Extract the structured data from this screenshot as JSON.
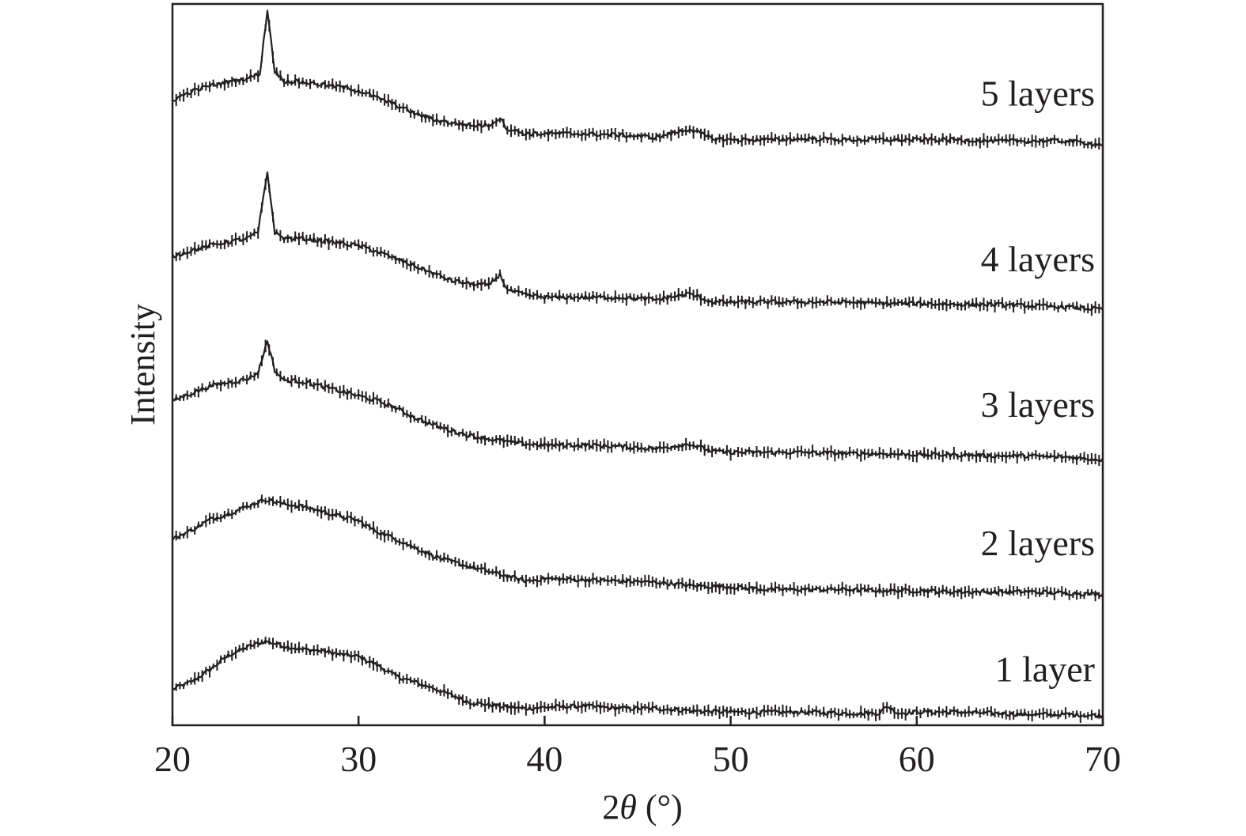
{
  "chart_data": {
    "type": "line",
    "title": "",
    "xlabel_prefix": "2",
    "xlabel_symbol": "θ",
    "xlabel_unit": " (°)",
    "ylabel": "Intensity",
    "xlim": [
      20,
      70
    ],
    "ylim": [
      0,
      6
    ],
    "xticks": [
      "20",
      "30",
      "40",
      "50",
      "60",
      "70"
    ],
    "y_tick_labels": false,
    "grid": false,
    "legend": "none (inline series labels at right)",
    "series": [
      {
        "name": "1 layer",
        "points": [
          [
            20,
            0.3
          ],
          [
            21,
            0.36
          ],
          [
            22,
            0.46
          ],
          [
            23,
            0.58
          ],
          [
            24,
            0.65
          ],
          [
            25,
            0.7
          ],
          [
            26,
            0.66
          ],
          [
            27,
            0.63
          ],
          [
            28,
            0.62
          ],
          [
            29,
            0.59
          ],
          [
            30,
            0.57
          ],
          [
            31,
            0.5
          ],
          [
            32,
            0.41
          ],
          [
            33,
            0.36
          ],
          [
            34,
            0.31
          ],
          [
            35,
            0.25
          ],
          [
            36,
            0.19
          ],
          [
            37,
            0.17
          ],
          [
            38,
            0.15
          ],
          [
            39,
            0.14
          ],
          [
            40,
            0.15
          ],
          [
            42,
            0.16
          ],
          [
            44,
            0.14
          ],
          [
            46,
            0.14
          ],
          [
            48,
            0.12
          ],
          [
            50,
            0.11
          ],
          [
            52,
            0.11
          ],
          [
            54,
            0.11
          ],
          [
            56,
            0.1
          ],
          [
            58,
            0.1
          ],
          [
            58.4,
            0.16
          ],
          [
            59,
            0.1
          ],
          [
            60,
            0.11
          ],
          [
            62,
            0.11
          ],
          [
            64,
            0.1
          ],
          [
            66,
            0.09
          ],
          [
            68,
            0.09
          ],
          [
            70,
            0.08
          ]
        ]
      },
      {
        "name": "2 layers",
        "points": [
          [
            20,
            1.55
          ],
          [
            21,
            1.62
          ],
          [
            22,
            1.71
          ],
          [
            23,
            1.76
          ],
          [
            24,
            1.82
          ],
          [
            25,
            1.88
          ],
          [
            26,
            1.84
          ],
          [
            27,
            1.82
          ],
          [
            28,
            1.78
          ],
          [
            29,
            1.74
          ],
          [
            30,
            1.7
          ],
          [
            31,
            1.61
          ],
          [
            32,
            1.55
          ],
          [
            33,
            1.48
          ],
          [
            34,
            1.41
          ],
          [
            35,
            1.36
          ],
          [
            36,
            1.32
          ],
          [
            37,
            1.28
          ],
          [
            38,
            1.24
          ],
          [
            39,
            1.2
          ],
          [
            40,
            1.22
          ],
          [
            42,
            1.21
          ],
          [
            44,
            1.2
          ],
          [
            46,
            1.19
          ],
          [
            48,
            1.16
          ],
          [
            50,
            1.15
          ],
          [
            52,
            1.13
          ],
          [
            54,
            1.13
          ],
          [
            56,
            1.13
          ],
          [
            58,
            1.12
          ],
          [
            60,
            1.12
          ],
          [
            62,
            1.11
          ],
          [
            64,
            1.11
          ],
          [
            66,
            1.11
          ],
          [
            68,
            1.1
          ],
          [
            70,
            1.09
          ]
        ]
      },
      {
        "name": "3 layers",
        "points": [
          [
            20,
            2.7
          ],
          [
            21,
            2.76
          ],
          [
            22,
            2.82
          ],
          [
            23,
            2.85
          ],
          [
            24,
            2.88
          ],
          [
            24.6,
            2.93
          ],
          [
            25.1,
            3.2
          ],
          [
            25.5,
            2.95
          ],
          [
            26,
            2.87
          ],
          [
            27,
            2.86
          ],
          [
            28,
            2.82
          ],
          [
            29,
            2.78
          ],
          [
            30,
            2.74
          ],
          [
            31,
            2.7
          ],
          [
            32,
            2.64
          ],
          [
            33,
            2.56
          ],
          [
            34,
            2.5
          ],
          [
            35,
            2.45
          ],
          [
            36,
            2.41
          ],
          [
            37,
            2.38
          ],
          [
            38,
            2.36
          ],
          [
            39,
            2.34
          ],
          [
            40,
            2.33
          ],
          [
            42,
            2.33
          ],
          [
            44,
            2.32
          ],
          [
            46,
            2.3
          ],
          [
            47.8,
            2.34
          ],
          [
            49,
            2.28
          ],
          [
            50,
            2.27
          ],
          [
            52,
            2.27
          ],
          [
            54,
            2.27
          ],
          [
            56,
            2.26
          ],
          [
            58,
            2.26
          ],
          [
            60,
            2.25
          ],
          [
            62,
            2.25
          ],
          [
            64,
            2.24
          ],
          [
            66,
            2.24
          ],
          [
            68,
            2.23
          ],
          [
            70,
            2.21
          ]
        ]
      },
      {
        "name": "4 layers",
        "points": [
          [
            20,
            3.9
          ],
          [
            21,
            3.95
          ],
          [
            22,
            3.99
          ],
          [
            23,
            4.02
          ],
          [
            24,
            4.05
          ],
          [
            24.6,
            4.1
          ],
          [
            25.1,
            4.6
          ],
          [
            25.5,
            4.1
          ],
          [
            26,
            4.05
          ],
          [
            27,
            4.05
          ],
          [
            28,
            4.03
          ],
          [
            29,
            4.01
          ],
          [
            30,
            3.99
          ],
          [
            31,
            3.94
          ],
          [
            32,
            3.88
          ],
          [
            33,
            3.82
          ],
          [
            34,
            3.76
          ],
          [
            35,
            3.7
          ],
          [
            36,
            3.67
          ],
          [
            37,
            3.66
          ],
          [
            37.6,
            3.75
          ],
          [
            38,
            3.62
          ],
          [
            39,
            3.58
          ],
          [
            40,
            3.56
          ],
          [
            42,
            3.56
          ],
          [
            44,
            3.56
          ],
          [
            46,
            3.54
          ],
          [
            47.8,
            3.59
          ],
          [
            49,
            3.52
          ],
          [
            50,
            3.52
          ],
          [
            52,
            3.52
          ],
          [
            54,
            3.52
          ],
          [
            56,
            3.52
          ],
          [
            58,
            3.51
          ],
          [
            60,
            3.51
          ],
          [
            62,
            3.5
          ],
          [
            64,
            3.5
          ],
          [
            66,
            3.49
          ],
          [
            68,
            3.48
          ],
          [
            70,
            3.46
          ]
        ]
      },
      {
        "name": "5 layers",
        "points": [
          [
            20,
            5.2
          ],
          [
            21,
            5.27
          ],
          [
            22,
            5.32
          ],
          [
            23,
            5.35
          ],
          [
            24,
            5.38
          ],
          [
            24.7,
            5.42
          ],
          [
            25.1,
            5.95
          ],
          [
            25.5,
            5.44
          ],
          [
            26,
            5.36
          ],
          [
            27,
            5.35
          ],
          [
            28,
            5.33
          ],
          [
            29,
            5.31
          ],
          [
            30,
            5.28
          ],
          [
            31,
            5.22
          ],
          [
            32,
            5.16
          ],
          [
            33,
            5.09
          ],
          [
            34,
            5.04
          ],
          [
            35,
            5.01
          ],
          [
            36,
            4.99
          ],
          [
            37,
            4.99
          ],
          [
            37.6,
            5.05
          ],
          [
            38,
            4.96
          ],
          [
            39,
            4.92
          ],
          [
            40,
            4.92
          ],
          [
            42,
            4.92
          ],
          [
            44,
            4.91
          ],
          [
            46,
            4.89
          ],
          [
            47.8,
            4.96
          ],
          [
            49,
            4.88
          ],
          [
            50,
            4.87
          ],
          [
            52,
            4.87
          ],
          [
            54,
            4.88
          ],
          [
            56,
            4.87
          ],
          [
            58,
            4.87
          ],
          [
            60,
            4.87
          ],
          [
            62,
            4.87
          ],
          [
            64,
            4.86
          ],
          [
            66,
            4.86
          ],
          [
            68,
            4.86
          ],
          [
            70,
            4.83
          ]
        ]
      }
    ]
  }
}
